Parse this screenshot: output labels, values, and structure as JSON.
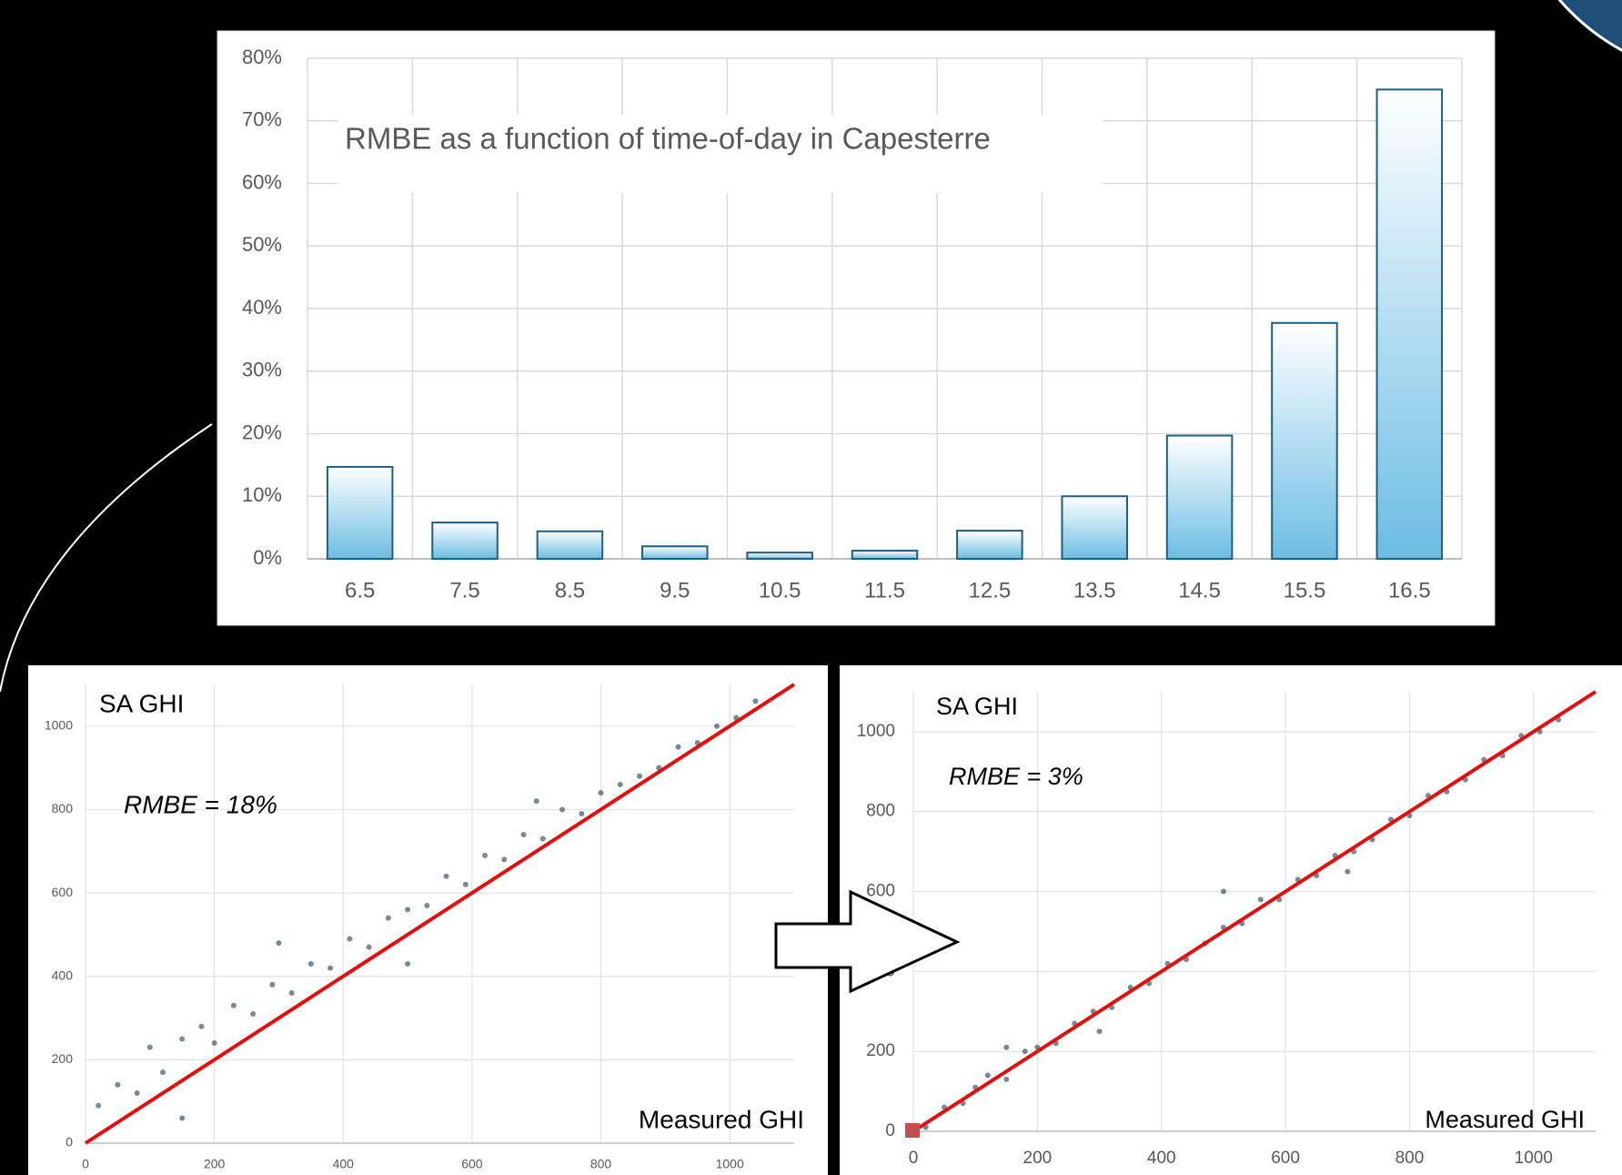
{
  "chart_data": [
    {
      "type": "bar",
      "title": "RMBE as a function of time-of-day in Capesterre",
      "categories": [
        "6.5",
        "7.5",
        "8.5",
        "9.5",
        "10.5",
        "11.5",
        "12.5",
        "13.5",
        "14.5",
        "15.5",
        "16.5"
      ],
      "values": [
        14.7,
        5.8,
        4.4,
        2.0,
        1.0,
        1.3,
        4.5,
        10.0,
        19.7,
        37.7,
        75.0
      ],
      "color": "#6bbde3",
      "edge_color": "#1f5f7f",
      "ylim": [
        0,
        80
      ],
      "yticks": [
        {
          "value": 0,
          "label": "0%"
        },
        {
          "value": 10,
          "label": "10%"
        },
        {
          "value": 20,
          "label": "20%"
        },
        {
          "value": 30,
          "label": "30%"
        },
        {
          "value": 40,
          "label": "40%"
        },
        {
          "value": 50,
          "label": "50%"
        },
        {
          "value": 60,
          "label": "60%"
        },
        {
          "value": 70,
          "label": "70%"
        },
        {
          "value": 80,
          "label": "80%"
        }
      ],
      "grid": true
    },
    {
      "type": "scatter",
      "ylabel": "SA GHI",
      "xlabel": "Measured GHI",
      "annotation": "RMBE = 18%",
      "x": [
        20,
        50,
        80,
        100,
        120,
        150,
        180,
        200,
        230,
        260,
        290,
        320,
        350,
        380,
        410,
        440,
        470,
        500,
        530,
        560,
        590,
        620,
        650,
        680,
        710,
        740,
        770,
        800,
        830,
        860,
        890,
        920,
        950,
        980,
        1010,
        1040,
        300,
        500,
        700,
        150
      ],
      "y": [
        90,
        140,
        120,
        230,
        170,
        250,
        280,
        240,
        330,
        310,
        380,
        360,
        430,
        420,
        490,
        470,
        540,
        560,
        570,
        640,
        620,
        690,
        680,
        740,
        730,
        800,
        790,
        840,
        860,
        880,
        900,
        950,
        960,
        1000,
        1020,
        1060,
        480,
        430,
        820,
        60
      ],
      "color": "#1f3a4a",
      "fit_line": {
        "x": [
          0,
          1100
        ],
        "y": [
          0,
          1100
        ],
        "color": "#e01010"
      },
      "xlim": [
        0,
        1100
      ],
      "ylim": [
        0,
        1100
      ],
      "xticks": [
        0,
        200,
        400,
        600,
        800,
        1000
      ],
      "yticks": [
        0,
        200,
        400,
        600,
        800,
        1000
      ],
      "grid": true
    },
    {
      "type": "scatter",
      "ylabel": "SA GHI",
      "xlabel": "Measured GHI",
      "annotation": "RMBE = 3%",
      "x": [
        20,
        50,
        80,
        100,
        120,
        150,
        180,
        200,
        230,
        260,
        290,
        320,
        350,
        380,
        410,
        440,
        470,
        500,
        530,
        560,
        590,
        620,
        650,
        680,
        710,
        740,
        770,
        800,
        830,
        860,
        890,
        920,
        950,
        980,
        1010,
        1040,
        300,
        500,
        700,
        150
      ],
      "y": [
        10,
        60,
        70,
        110,
        140,
        130,
        200,
        210,
        220,
        270,
        300,
        310,
        360,
        370,
        420,
        430,
        470,
        510,
        520,
        580,
        580,
        630,
        640,
        690,
        700,
        730,
        780,
        790,
        840,
        850,
        880,
        930,
        940,
        990,
        1000,
        1030,
        250,
        600,
        650,
        210
      ],
      "color": "#1f3a4a",
      "fit_line": {
        "x": [
          0,
          1100
        ],
        "y": [
          0,
          1100
        ],
        "color": "#e01010"
      },
      "xlim": [
        0,
        1100
      ],
      "ylim": [
        0,
        1100
      ],
      "xticks": [
        0,
        200,
        400,
        600,
        800,
        1000
      ],
      "yticks": [
        0,
        200,
        400,
        600,
        800,
        1000
      ],
      "grid": true
    }
  ]
}
